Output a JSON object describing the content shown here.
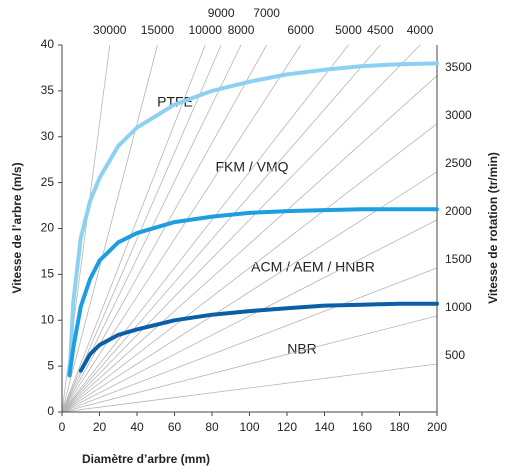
{
  "chart_data": {
    "type": "line",
    "x_label": "Diamètre d’arbre (mm)",
    "y_label": "Vitesse de l’arbre (m/s)",
    "y2_label": "Vitesse de rotation (tr/min)",
    "xlim": [
      0,
      200
    ],
    "xticks": [
      0,
      20,
      40,
      60,
      80,
      100,
      120,
      140,
      160,
      180,
      200
    ],
    "ylim": [
      0,
      40
    ],
    "yticks": [
      0,
      5,
      10,
      15,
      20,
      25,
      30,
      35,
      40
    ],
    "speed_lines": [
      30000,
      15000,
      10000,
      9000,
      8000,
      7000,
      6000,
      5000,
      4500,
      4000,
      3500,
      3000,
      2500,
      2000,
      1500,
      1000,
      500
    ],
    "speed_line_color": "#b5b5b5",
    "x": [
      4,
      6,
      10,
      15,
      20,
      30,
      40,
      60,
      80,
      100,
      120,
      140,
      160,
      180,
      200
    ],
    "series": [
      {
        "color": "#8dd1f2",
        "values": [
          4,
          12,
          19,
          23,
          25.5,
          29,
          31,
          33.5,
          35,
          36,
          36.8,
          37.3,
          37.7,
          37.9,
          38
        ]
      },
      {
        "color": "#1d9ee0",
        "values": [
          4,
          7,
          11.5,
          14.5,
          16.5,
          18.5,
          19.5,
          20.7,
          21.3,
          21.7,
          21.9,
          22,
          22.1,
          22.1,
          22.1
        ]
      },
      {
        "color": "#0b5ea8",
        "values": [
          null,
          null,
          4.5,
          6.3,
          7.3,
          8.4,
          9,
          10,
          10.6,
          11,
          11.3,
          11.6,
          11.7,
          11.8,
          11.8
        ]
      }
    ],
    "annotations": [
      "PTFE",
      "FKM / VMQ",
      "ACM / AEM / HNBR",
      "NBR"
    ]
  }
}
